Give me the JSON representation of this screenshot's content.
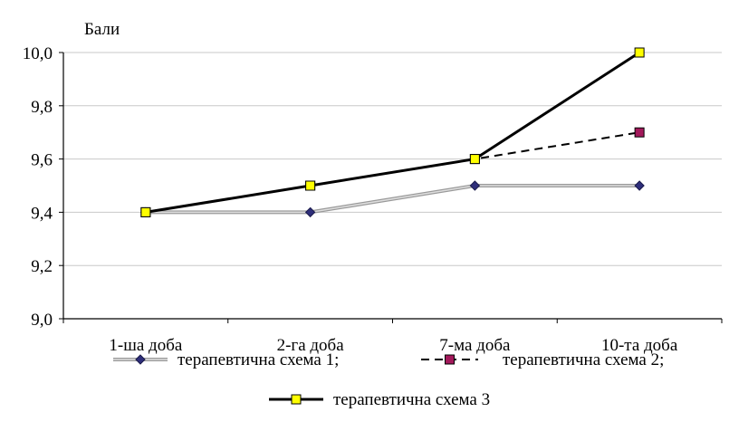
{
  "chart_data": {
    "type": "line",
    "ylabel": "Бали",
    "categories": [
      "1-ша доба",
      "2-га доба",
      "7-ма доба",
      "10-та доба"
    ],
    "ylim": [
      9.0,
      10.0
    ],
    "yticks": [
      "9,0",
      "9,2",
      "9,4",
      "9,6",
      "9,8",
      "10,0"
    ],
    "grid": true,
    "legend_position": "bottom",
    "series": [
      {
        "name": "терапевтична схема 1;",
        "values": [
          9.4,
          9.4,
          9.5,
          9.5
        ],
        "color": "#a0a0a0",
        "marker": "diamond",
        "marker_color": "#2e2e7a",
        "line": "solid-grey"
      },
      {
        "name": "терапевтична схема 2;",
        "values": [
          9.4,
          9.5,
          9.6,
          9.7
        ],
        "color": "#000000",
        "marker": "square",
        "marker_color": "#a3195b",
        "line": "dashed"
      },
      {
        "name": "терапевтична схема 3",
        "values": [
          9.4,
          9.5,
          9.6,
          10.0
        ],
        "color": "#000000",
        "marker": "square",
        "marker_color": "#ffff00",
        "line": "solid"
      }
    ]
  }
}
